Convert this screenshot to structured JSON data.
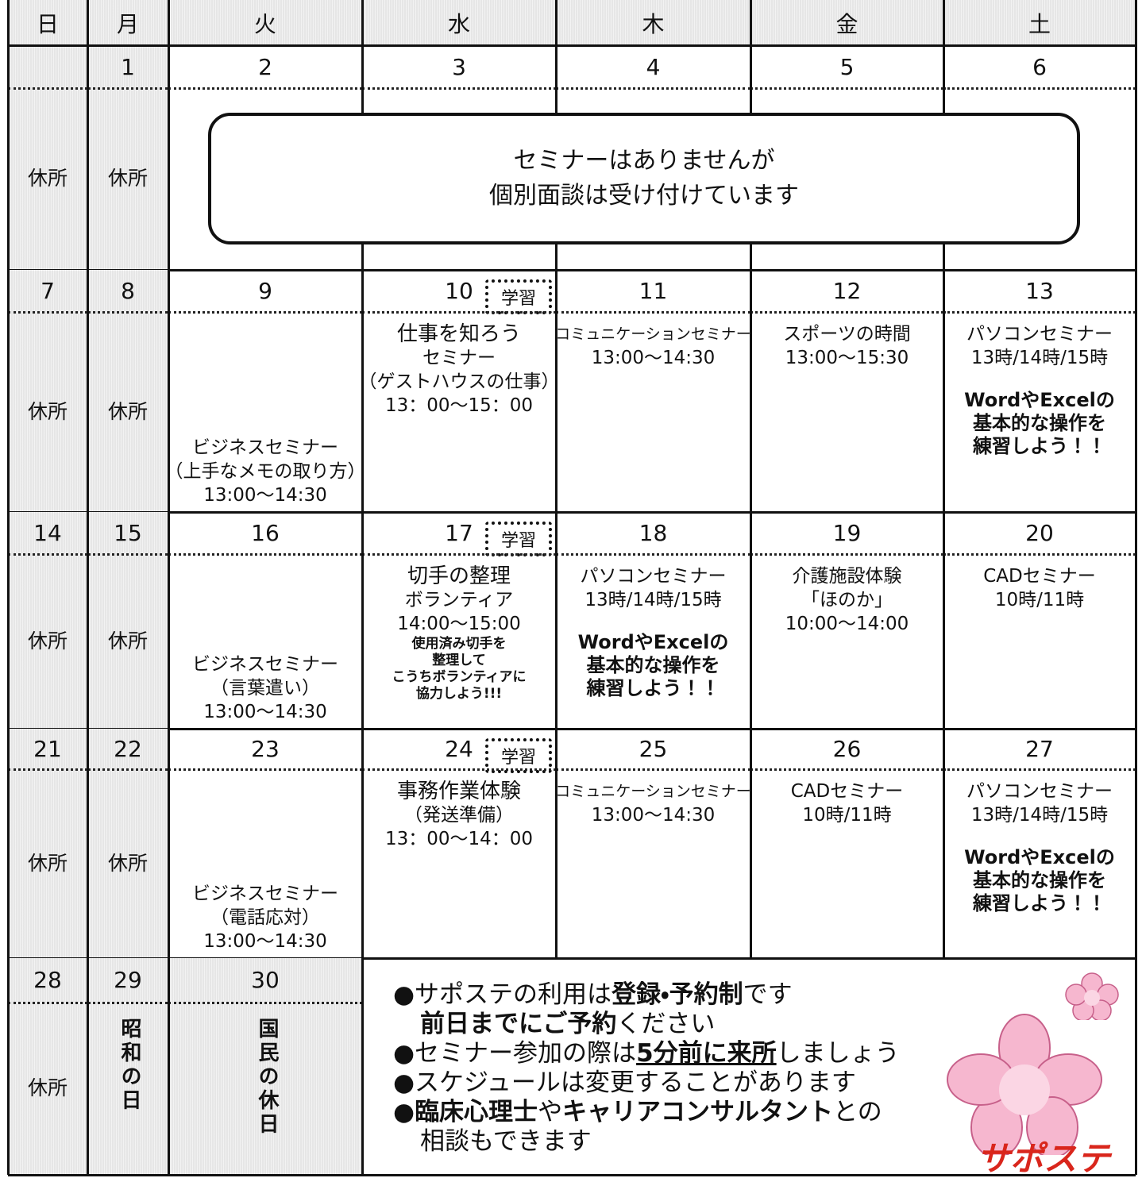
{
  "header": {
    "weekdays": [
      "日",
      "月",
      "火",
      "水",
      "木",
      "金",
      "土"
    ]
  },
  "weeks": [
    {
      "days": [
        {
          "lines": [
            "休所"
          ]
        },
        {
          "date": "1",
          "lines": [
            "休所"
          ]
        },
        {
          "date": "2"
        },
        {
          "date": "3"
        },
        {
          "date": "4"
        },
        {
          "date": "5"
        },
        {
          "date": "6"
        }
      ],
      "notice": [
        "セミナーはありませんが",
        "個別面談は受け付けています"
      ]
    },
    {
      "days": [
        {
          "date": "7",
          "lines": [
            "休所"
          ]
        },
        {
          "date": "8",
          "lines": [
            "休所"
          ]
        },
        {
          "date": "9",
          "lines": [
            "ビジネスセミナー",
            "（上手なメモの取り方）",
            "13:00〜14:30"
          ]
        },
        {
          "date": "10",
          "tag": "学習",
          "lines": [
            "仕事を知ろう",
            "セミナー",
            "（ゲストハウスの仕事）",
            "13：00〜15：00"
          ]
        },
        {
          "date": "11",
          "lines": [
            "コミュニケーションセミナー",
            "13:00〜14:30"
          ]
        },
        {
          "date": "12",
          "lines": [
            "スポーツの時間",
            "13:00〜15:30"
          ]
        },
        {
          "date": "13",
          "lines": [
            "パソコンセミナー",
            "13時/14時/15時"
          ],
          "emphasis": [
            "WordやExcelの",
            "基本的な操作を",
            "練習しよう！！"
          ]
        }
      ]
    },
    {
      "days": [
        {
          "date": "14",
          "lines": [
            "休所"
          ]
        },
        {
          "date": "15",
          "lines": [
            "休所"
          ]
        },
        {
          "date": "16",
          "lines": [
            "ビジネスセミナー",
            "（言葉遣い）",
            "13:00〜14:30"
          ]
        },
        {
          "date": "17",
          "tag": "学習",
          "lines": [
            "切手の整理",
            "ボランティア",
            "14:00〜15:00"
          ],
          "emphasis": [
            "使用済み切手を",
            "整理して",
            "こうちボランティアに",
            "協力しよう!!!"
          ]
        },
        {
          "date": "18",
          "lines": [
            "パソコンセミナー",
            "13時/14時/15時"
          ],
          "emphasis": [
            "WordやExcelの",
            "基本的な操作を",
            "練習しよう！！"
          ]
        },
        {
          "date": "19",
          "lines": [
            "介護施設体験",
            "「ほのか」",
            "10:00〜14:00"
          ]
        },
        {
          "date": "20",
          "lines": [
            "CADセミナー",
            "10時/11時"
          ]
        }
      ]
    },
    {
      "days": [
        {
          "date": "21",
          "lines": [
            "休所"
          ]
        },
        {
          "date": "22",
          "lines": [
            "休所"
          ]
        },
        {
          "date": "23",
          "lines": [
            "ビジネスセミナー",
            "（電話応対）",
            "13:00〜14:30"
          ]
        },
        {
          "date": "24",
          "tag": "学習",
          "lines": [
            "事務作業体験",
            "（発送準備）",
            "13：00〜14：00"
          ]
        },
        {
          "date": "25",
          "lines": [
            "コミュニケーションセミナー",
            "13:00〜14:30"
          ]
        },
        {
          "date": "26",
          "lines": [
            "CADセミナー",
            "10時/11時"
          ]
        },
        {
          "date": "27",
          "lines": [
            "パソコンセミナー",
            "13時/14時/15時"
          ],
          "emphasis": [
            "WordやExcelの",
            "基本的な操作を",
            "練習しよう！！"
          ]
        }
      ]
    },
    {
      "days": [
        {
          "date": "28",
          "lines": [
            "休所"
          ]
        },
        {
          "date": "29",
          "vertical": "昭和の日"
        },
        {
          "date": "30",
          "vertical": "国民の休日"
        }
      ],
      "notes": [
        [
          {
            "text": "●サポステの利用は"
          },
          {
            "text": "登録・予約制",
            "bold": true
          },
          {
            "text": "です"
          }
        ],
        [
          {
            "text": "前日までにご予約",
            "bold": true
          },
          {
            "text": "ください"
          }
        ],
        [
          {
            "text": "●セミナー参加の際は"
          },
          {
            "text": "5分前に来所",
            "bold": true,
            "underline": true
          },
          {
            "text": "しましょう"
          }
        ],
        [
          {
            "text": "●スケジュールは変更することがあります"
          }
        ],
        [
          {
            "text": "●"
          },
          {
            "text": "臨床心理士",
            "bold": true
          },
          {
            "text": "や"
          },
          {
            "text": "キャリアコンサルタント",
            "bold": true
          },
          {
            "text": "との"
          }
        ],
        [
          {
            "text": "相談もできます"
          }
        ]
      ]
    }
  ],
  "logo": "サポステ"
}
